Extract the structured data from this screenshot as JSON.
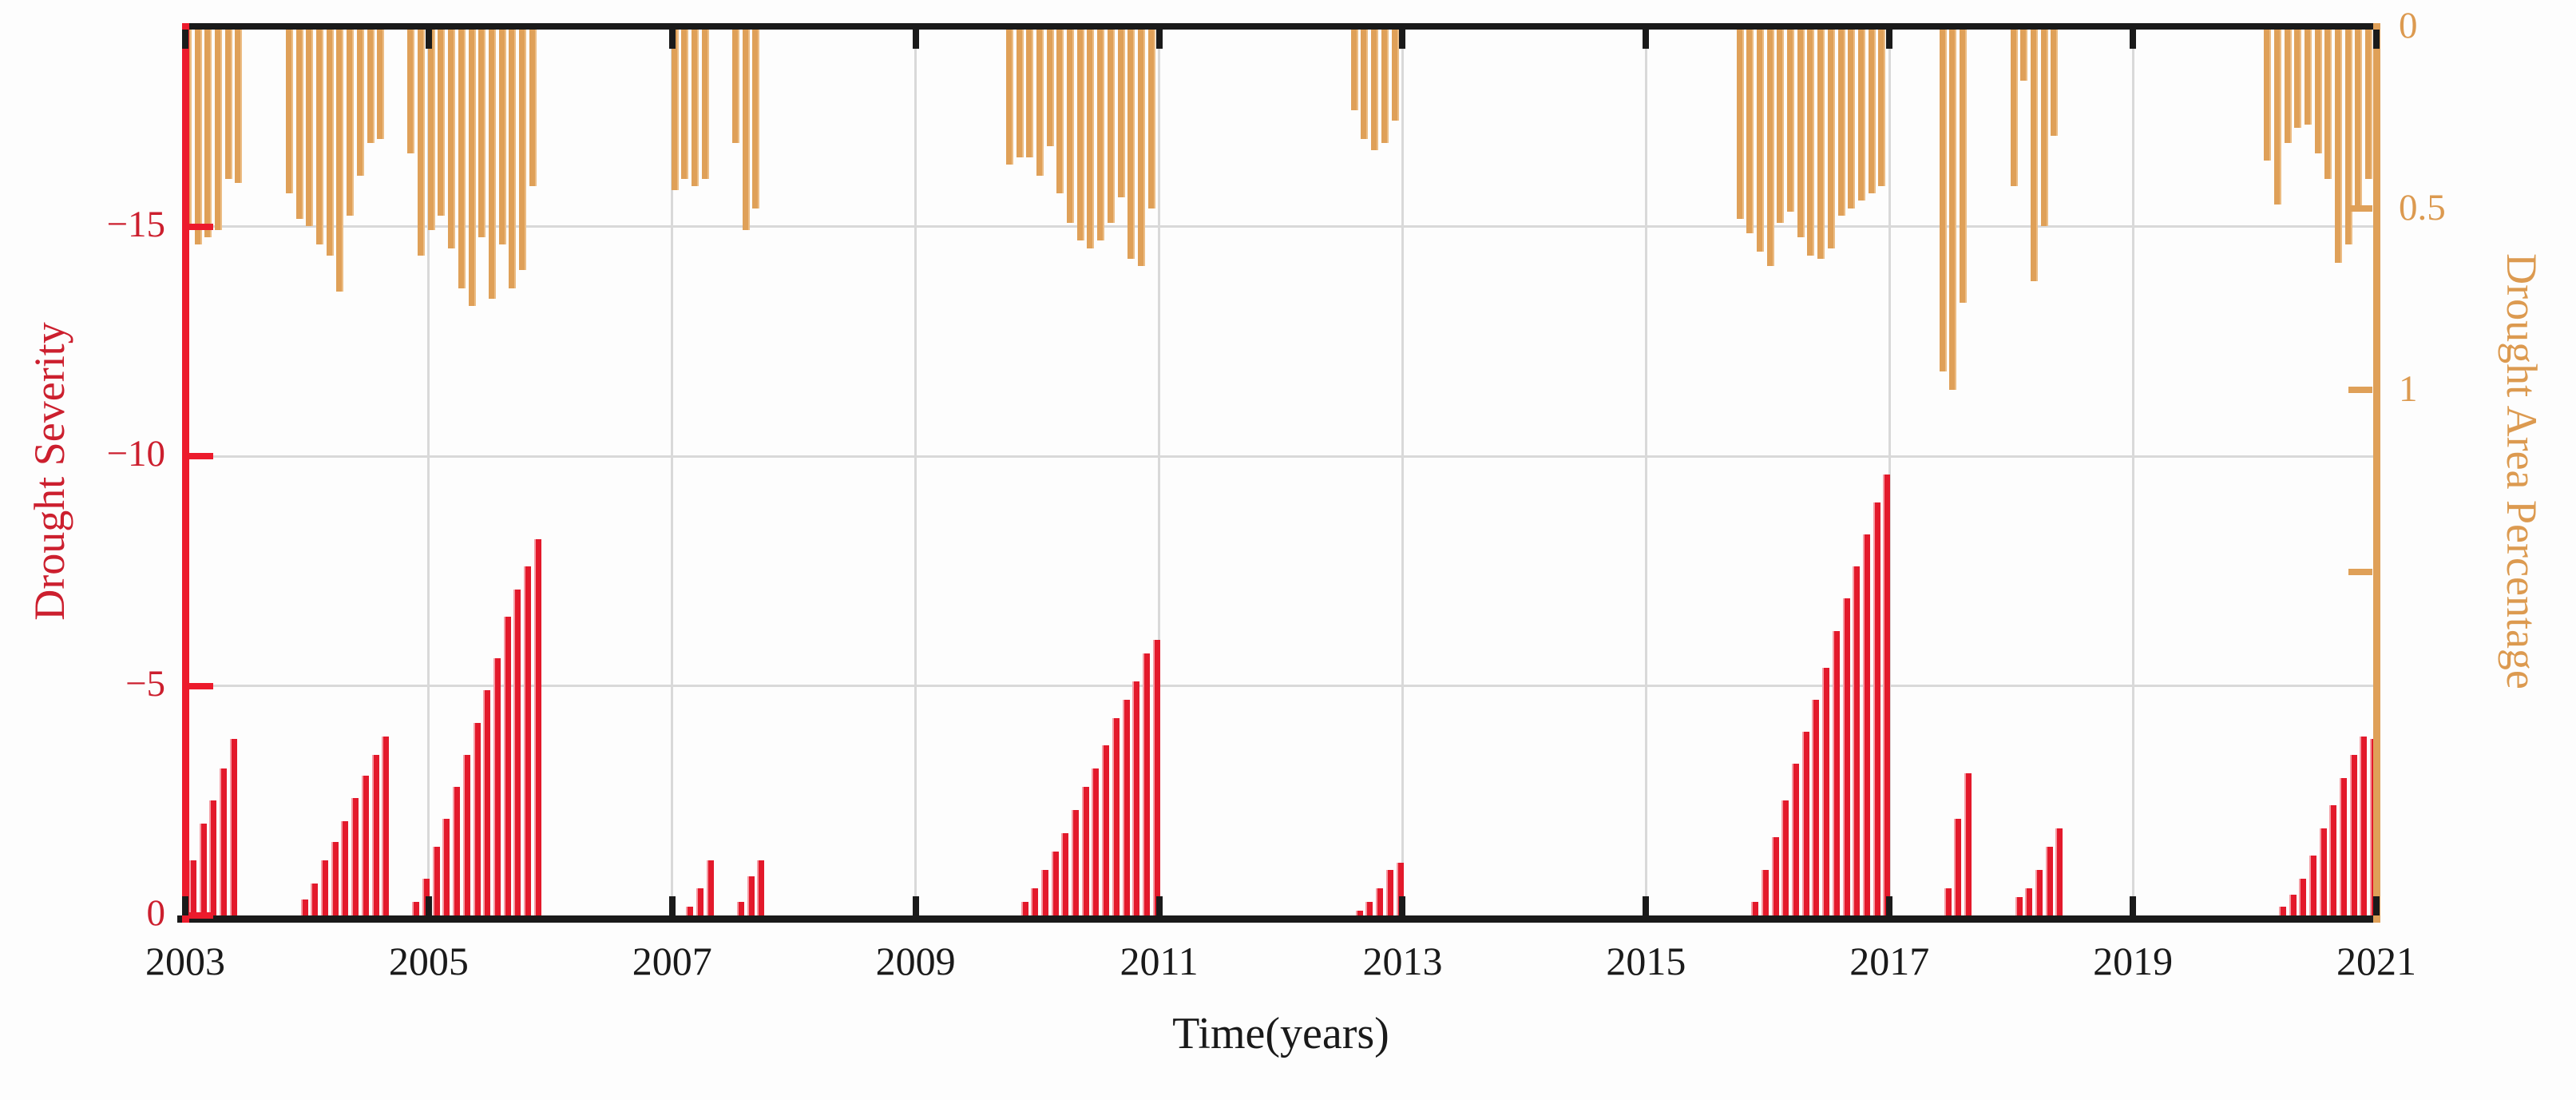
{
  "figure": {
    "background": "#fdfdfd",
    "colors": {
      "severity_bar": "#e3192b",
      "severity_axis": "#ec1b2c",
      "severity_text": "#cc1f2e",
      "area_bar": "#dfa058",
      "area_text": "#dc9a50",
      "frame_black": "#1a1a1a",
      "gridline": "#d9d9d9"
    }
  },
  "chart_data": {
    "type": "bar",
    "title": "",
    "xlabel": "Time(years)",
    "ylabel_left": "Drought Severity",
    "ylabel_right": "Drought Area Percentage",
    "grid": "on",
    "x_range_years": [
      2003,
      2021
    ],
    "x_tick_labels": [
      "2003",
      "2005",
      "2007",
      "2009",
      "2011",
      "2013",
      "2015",
      "2017",
      "2019",
      "2021"
    ],
    "x_tick_years": [
      2003,
      2005,
      2007,
      2009,
      2011,
      2013,
      2015,
      2017,
      2019,
      2021
    ],
    "grid_years": [
      2005,
      2007,
      2009,
      2011,
      2013,
      2015,
      2017,
      2019
    ],
    "left_axis": {
      "ylim": [
        0,
        -19.35
      ],
      "tick_values": [
        0,
        -5,
        -10,
        -15
      ],
      "tick_labels": [
        "0",
        "−5",
        "−10",
        "−15"
      ]
    },
    "right_axis": {
      "ylim": [
        0,
        2.45
      ],
      "tick_values": [
        0,
        0.5,
        1,
        1.5
      ],
      "tick_labels": [
        "0",
        "0.5",
        "1",
        ""
      ]
    },
    "series": [
      {
        "name": "Drought Severity",
        "axis": "left",
        "color": "#e3192b",
        "direction": "up-from-zero"
      },
      {
        "name": "Drought Area Percentage",
        "axis": "right",
        "color": "#dfa058",
        "direction": "down-from-top"
      }
    ],
    "events": [
      {
        "start": "2003-01",
        "area": [
          0.56,
          0.6,
          0.58,
          0.56,
          0.42,
          0.43
        ],
        "severity": [
          -1.2,
          -2.0,
          -2.5,
          -3.2,
          -3.85,
          0
        ]
      },
      {
        "start": "2003-11",
        "area": [
          0.46,
          0.53,
          0.55,
          0.6,
          0.63,
          0.73,
          0.52,
          0.41,
          0.32,
          0.31
        ],
        "severity": [
          0,
          -0.35,
          -0.7,
          -1.2,
          -1.6,
          -2.05,
          -2.55,
          -3.05,
          -3.5,
          -3.9
        ]
      },
      {
        "start": "2004-11",
        "area": [
          0.35,
          0.63,
          0.56,
          0.52,
          0.61,
          0.72,
          0.77,
          0.58,
          0.75,
          0.6,
          0.72,
          0.67,
          0.44
        ],
        "severity": [
          -0.3,
          -0.8,
          -1.5,
          -2.1,
          -2.8,
          -3.5,
          -4.2,
          -4.9,
          -5.6,
          -6.5,
          -7.1,
          -7.6,
          -8.2
        ]
      },
      {
        "start": "2007-01",
        "area": [
          0.45,
          0.42,
          0.44,
          0.42
        ],
        "severity": [
          0,
          -0.2,
          -0.6,
          -1.2
        ]
      },
      {
        "start": "2007-07",
        "area": [
          0.32,
          0.56,
          0.5
        ],
        "severity": [
          -0.3,
          -0.85,
          -1.2
        ]
      },
      {
        "start": "2009-10",
        "area": [
          0.38,
          0.36,
          0.36,
          0.41,
          0.33,
          0.46,
          0.54,
          0.59,
          0.61,
          0.59,
          0.54,
          0.47,
          0.64,
          0.66,
          0.5
        ],
        "severity": [
          0,
          -0.3,
          -0.6,
          -1.0,
          -1.4,
          -1.8,
          -2.3,
          -2.8,
          -3.2,
          -3.7,
          -4.3,
          -4.7,
          -5.1,
          -5.7,
          -6.0
        ]
      },
      {
        "start": "2012-08",
        "area": [
          0.23,
          0.31,
          0.34,
          0.32,
          0.26
        ],
        "severity": [
          -0.1,
          -0.3,
          -0.6,
          -1.0,
          -1.15
        ]
      },
      {
        "start": "2015-10",
        "area": [
          0.53,
          0.57,
          0.62,
          0.66,
          0.54,
          0.51,
          0.58,
          0.63,
          0.64,
          0.61,
          0.52,
          0.5,
          0.48,
          0.46,
          0.44
        ],
        "severity": [
          0,
          -0.3,
          -1.0,
          -1.7,
          -2.5,
          -3.3,
          -4.0,
          -4.7,
          -5.4,
          -6.2,
          -6.9,
          -7.6,
          -8.3,
          -9.0,
          -9.6
        ]
      },
      {
        "start": "2017-06",
        "area": [
          0.95,
          1.0,
          0.76
        ],
        "severity": [
          -0.6,
          -2.1,
          -3.1
        ]
      },
      {
        "start": "2018-01",
        "area": [
          0.44,
          0.15,
          0.7,
          0.55,
          0.3
        ],
        "severity": [
          -0.4,
          -0.6,
          -1.0,
          -1.5,
          -1.9
        ]
      },
      {
        "start": "2020-02",
        "area": [
          0.37,
          0.49,
          0.32,
          0.28,
          0.27,
          0.35,
          0.42,
          0.65,
          0.6,
          0.5,
          0.42
        ],
        "severity": [
          0,
          -0.2,
          -0.45,
          -0.8,
          -1.3,
          -1.9,
          -2.4,
          -3.0,
          -3.5,
          -3.9,
          -3.85
        ]
      }
    ]
  }
}
